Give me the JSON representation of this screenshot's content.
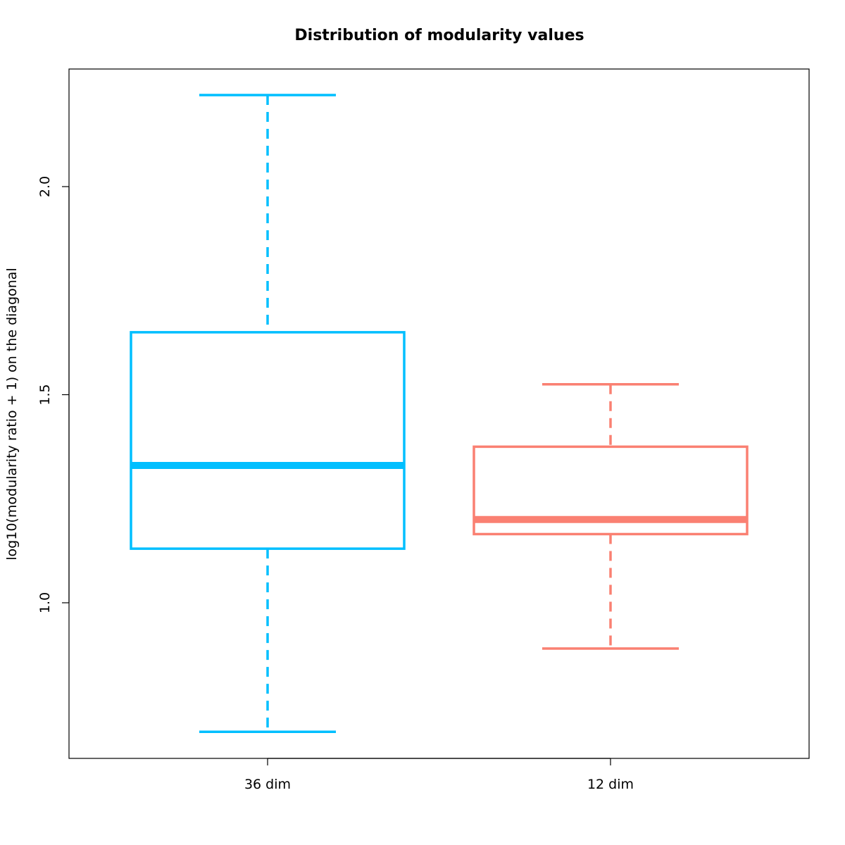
{
  "chart_data": {
    "type": "boxplot",
    "title": "Distribution of modularity values",
    "xlabel": "",
    "ylabel": "log10(modularity ratio + 1) on the diagonal",
    "ylim": [
      0.65,
      2.28
    ],
    "yticks": [
      1.0,
      1.5,
      2.0
    ],
    "ytick_labels": [
      "1.0",
      "1.5",
      "2.0"
    ],
    "grid": false,
    "legend": "none",
    "categories": [
      "36 dim",
      "12 dim"
    ],
    "boxes": [
      {
        "category": "36 dim",
        "color": "#00BFFF",
        "min": 0.69,
        "q1": 1.13,
        "median": 1.33,
        "q3": 1.65,
        "max": 2.22
      },
      {
        "category": "12 dim",
        "color": "#FA8072",
        "min": 0.89,
        "q1": 1.165,
        "median": 1.2,
        "q3": 1.375,
        "max": 1.525
      }
    ]
  }
}
